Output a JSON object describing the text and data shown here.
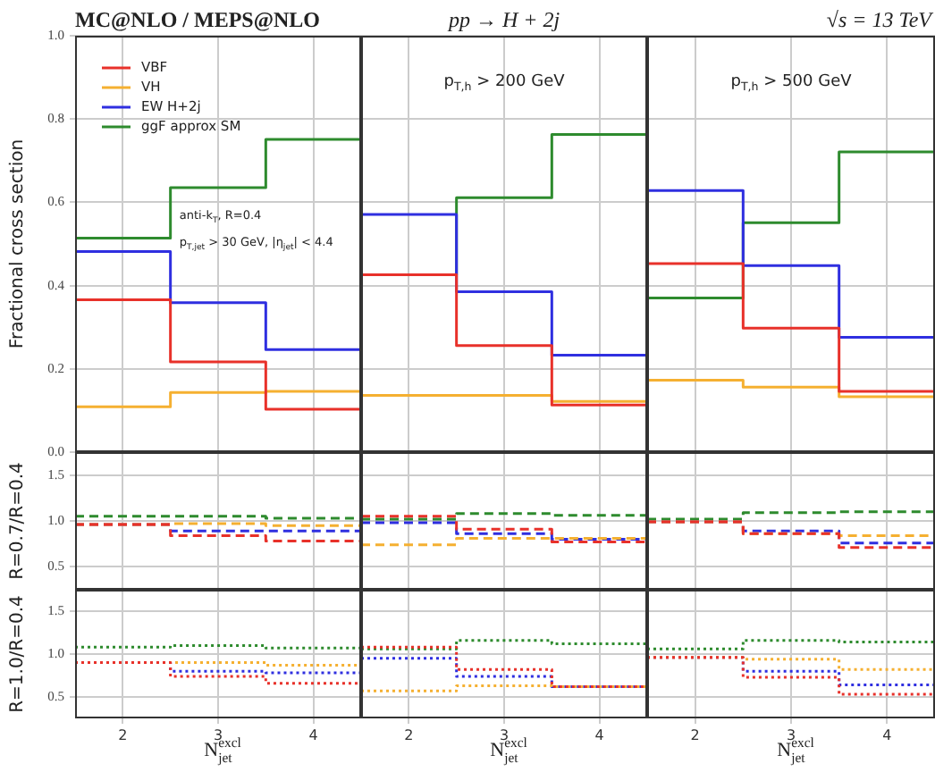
{
  "chart_data": [
    {
      "type": "histogram",
      "title": "MC@NLO / MEPS@NLO",
      "ylabel": "Fractional cross section",
      "annotations": [
        "anti-k$_{T}$, R=0.4",
        "p$_{T,jet}$ > 30 GeV, |η$_{jet}$| < 4.4"
      ],
      "bins": [
        1.5,
        2.5,
        3.5,
        4.5
      ],
      "xlim": [
        1.5,
        4.5
      ],
      "xticks": [
        2,
        3,
        4
      ],
      "ylim": [
        0,
        1
      ],
      "yticks": [
        {
          "value": 0,
          "label": "0.0"
        },
        {
          "value": 0.2,
          "label": "0.2"
        },
        {
          "value": 0.4,
          "label": "0.4"
        },
        {
          "value": 0.6,
          "label": "0.6"
        },
        {
          "value": 0.8,
          "label": "0.8"
        },
        {
          "value": 1,
          "label": "1.0"
        }
      ],
      "grid": true,
      "legend": "top left",
      "tick_labels": "y",
      "line_style": "solid",
      "series": [
        {
          "name": "VBF",
          "color": "#e8312a",
          "values": [
            0.366,
            0.217,
            0.103
          ]
        },
        {
          "name": "VH",
          "color": "#f5b031",
          "values": [
            0.109,
            0.143,
            0.146
          ]
        },
        {
          "name": "EW H+2j",
          "color": "#2f2fe0",
          "values": [
            0.482,
            0.359,
            0.246
          ]
        },
        {
          "name": "ggF approx SM",
          "color": "#2e8b2e",
          "values": [
            0.514,
            0.635,
            0.751
          ]
        }
      ]
    },
    {
      "type": "histogram",
      "title": "pp → H + 2j",
      "annotations": [
        "p$_{T,h}$ > 200 GeV"
      ],
      "bins": [
        1.5,
        2.5,
        3.5,
        4.5
      ],
      "xlim": [
        1.5,
        4.5
      ],
      "xticks": [
        2,
        3,
        4
      ],
      "ylim": [
        0,
        1
      ],
      "yticks": [
        0,
        0.2,
        0.4,
        0.6,
        0.8,
        1
      ],
      "grid": true,
      "tick_labels": false,
      "line_style": "solid",
      "series": [
        {
          "color": "#e8312a",
          "values": [
            0.426,
            0.256,
            0.113
          ]
        },
        {
          "color": "#f5b031",
          "values": [
            0.136,
            0.136,
            0.122
          ]
        },
        {
          "color": "#2f2fe0",
          "values": [
            0.571,
            0.385,
            0.233
          ]
        },
        {
          "color": "#2e8b2e",
          "values": [
            0.426,
            0.611,
            0.763
          ]
        }
      ]
    },
    {
      "type": "histogram",
      "title": "√s = 13 TeV",
      "annotations": [
        "p$_{T,h}$ > 500 GeV"
      ],
      "bins": [
        1.5,
        2.5,
        3.5,
        4.5
      ],
      "xlim": [
        1.5,
        4.5
      ],
      "xticks": [
        2,
        3,
        4
      ],
      "ylim": [
        0,
        1
      ],
      "yticks": [
        0,
        0.2,
        0.4,
        0.6,
        0.8,
        1
      ],
      "grid": true,
      "tick_labels": false,
      "line_style": "solid",
      "series": [
        {
          "color": "#e8312a",
          "values": [
            0.453,
            0.298,
            0.146
          ]
        },
        {
          "color": "#f5b031",
          "values": [
            0.173,
            0.156,
            0.133
          ]
        },
        {
          "color": "#2f2fe0",
          "values": [
            0.628,
            0.448,
            0.276
          ]
        },
        {
          "color": "#2e8b2e",
          "values": [
            0.37,
            0.551,
            0.721
          ]
        }
      ]
    },
    {
      "type": "histogram",
      "ylabel": "R=0.7/R=0.4",
      "bins": [
        1.5,
        2.5,
        3.5,
        4.5
      ],
      "xlim": [
        1.5,
        4.5
      ],
      "xticks": [
        2,
        3,
        4
      ],
      "ylim": [
        0.25,
        1.75
      ],
      "yticks": [
        0.5,
        {
          "value": 1,
          "label": "1.0"
        },
        1.5
      ],
      "grid": true,
      "tick_labels": "y",
      "line_style": "dashed",
      "series": [
        {
          "color": "#e8312a",
          "values": [
            0.96,
            0.84,
            0.78
          ]
        },
        {
          "color": "#f5b031",
          "values": [
            0.96,
            0.97,
            0.95
          ]
        },
        {
          "color": "#2f2fe0",
          "values": [
            0.96,
            0.89,
            0.89
          ]
        },
        {
          "color": "#2e8b2e",
          "values": [
            1.05,
            1.05,
            1.03
          ]
        }
      ]
    },
    {
      "type": "histogram",
      "bins": [
        1.5,
        2.5,
        3.5,
        4.5
      ],
      "xlim": [
        1.5,
        4.5
      ],
      "xticks": [
        2,
        3,
        4
      ],
      "ylim": [
        0.25,
        1.75
      ],
      "yticks": [
        0.5,
        1,
        1.5
      ],
      "grid": true,
      "tick_labels": false,
      "line_style": "dashed",
      "series": [
        {
          "color": "#e8312a",
          "values": [
            1.05,
            0.91,
            0.77
          ]
        },
        {
          "color": "#f5b031",
          "values": [
            0.74,
            0.81,
            0.81
          ]
        },
        {
          "color": "#2f2fe0",
          "values": [
            0.98,
            0.86,
            0.8
          ]
        },
        {
          "color": "#2e8b2e",
          "values": [
            1.02,
            1.08,
            1.06
          ]
        }
      ]
    },
    {
      "type": "histogram",
      "bins": [
        1.5,
        2.5,
        3.5,
        4.5
      ],
      "xlim": [
        1.5,
        4.5
      ],
      "xticks": [
        2,
        3,
        4
      ],
      "ylim": [
        0.25,
        1.75
      ],
      "yticks": [
        0.5,
        1,
        1.5
      ],
      "grid": true,
      "tick_labels": false,
      "line_style": "dashed",
      "series": [
        {
          "color": "#e8312a",
          "values": [
            0.99,
            0.86,
            0.71
          ]
        },
        {
          "color": "#f5b031",
          "values": [
            0.99,
            0.86,
            0.84
          ]
        },
        {
          "color": "#2f2fe0",
          "values": [
            0.99,
            0.89,
            0.76
          ]
        },
        {
          "color": "#2e8b2e",
          "values": [
            1.02,
            1.09,
            1.1
          ]
        }
      ]
    },
    {
      "type": "histogram",
      "ylabel": "R=1.0/R=0.4",
      "xlabel": "N$_{jet}$$^{excl}$",
      "bins": [
        1.5,
        2.5,
        3.5,
        4.5
      ],
      "xlim": [
        1.5,
        4.5
      ],
      "xticks": [
        2,
        3,
        4
      ],
      "ylim": [
        0.25,
        1.75
      ],
      "yticks": [
        0.5,
        {
          "value": 1,
          "label": "1.0"
        },
        1.5
      ],
      "grid": true,
      "line_style": "dotted",
      "series": [
        {
          "color": "#e8312a",
          "values": [
            0.9,
            0.74,
            0.66
          ]
        },
        {
          "color": "#f5b031",
          "values": [
            0.9,
            0.9,
            0.87
          ]
        },
        {
          "color": "#2f2fe0",
          "values": [
            0.9,
            0.8,
            0.78
          ]
        },
        {
          "color": "#2e8b2e",
          "values": [
            1.08,
            1.1,
            1.07
          ]
        }
      ]
    },
    {
      "type": "histogram",
      "xlabel": "N$_{jet}$$^{excl}$",
      "bins": [
        1.5,
        2.5,
        3.5,
        4.5
      ],
      "xlim": [
        1.5,
        4.5
      ],
      "xticks": [
        2,
        3,
        4
      ],
      "ylim": [
        0.25,
        1.75
      ],
      "yticks": [
        0.5,
        1,
        1.5
      ],
      "grid": true,
      "tick_labels": "x",
      "line_style": "dotted",
      "series": [
        {
          "color": "#e8312a",
          "values": [
            1.08,
            0.82,
            0.62
          ]
        },
        {
          "color": "#f5b031",
          "values": [
            0.57,
            0.63,
            0.62
          ]
        },
        {
          "color": "#2f2fe0",
          "values": [
            0.95,
            0.74,
            0.62
          ]
        },
        {
          "color": "#2e8b2e",
          "values": [
            1.06,
            1.16,
            1.12
          ]
        }
      ]
    },
    {
      "type": "histogram",
      "xlabel": "N$_{jet}$$^{excl}$",
      "bins": [
        1.5,
        2.5,
        3.5,
        4.5
      ],
      "xlim": [
        1.5,
        4.5
      ],
      "xticks": [
        2,
        3,
        4
      ],
      "ylim": [
        0.25,
        1.75
      ],
      "yticks": [
        0.5,
        1,
        1.5
      ],
      "grid": true,
      "tick_labels": "x",
      "line_style": "dotted",
      "series": [
        {
          "color": "#e8312a",
          "values": [
            0.96,
            0.73,
            0.53
          ]
        },
        {
          "color": "#f5b031",
          "values": [
            0.96,
            0.94,
            0.82
          ]
        },
        {
          "color": "#2f2fe0",
          "values": [
            0.96,
            0.8,
            0.64
          ]
        },
        {
          "color": "#2e8b2e",
          "values": [
            1.06,
            1.16,
            1.14
          ]
        }
      ]
    }
  ]
}
